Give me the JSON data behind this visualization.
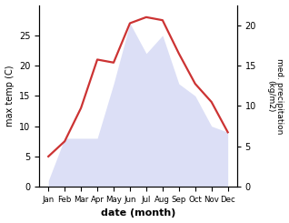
{
  "months": [
    "Jan",
    "Feb",
    "Mar",
    "Apr",
    "May",
    "Jun",
    "Jul",
    "Aug",
    "Sep",
    "Oct",
    "Nov",
    "Dec"
  ],
  "temp": [
    5,
    7.5,
    13,
    21,
    20.5,
    27,
    28,
    27.5,
    22,
    17,
    14,
    9
  ],
  "precip": [
    1,
    8,
    8,
    8,
    17,
    27,
    22,
    25,
    17,
    15,
    10,
    9
  ],
  "temp_color": "#cc3333",
  "precip_fill_color": "#c5caf0",
  "ylabel_left": "max temp (C)",
  "ylabel_right": "med. precipitation\n(kg/m2)",
  "xlabel": "date (month)",
  "ylim_left": [
    0,
    30
  ],
  "ylim_right": [
    0,
    22.5
  ],
  "left_yticks": [
    0,
    5,
    10,
    15,
    20,
    25
  ],
  "right_yticks": [
    0,
    5,
    10,
    15,
    20
  ],
  "temp_linewidth": 1.6,
  "precip_alpha": 0.6
}
